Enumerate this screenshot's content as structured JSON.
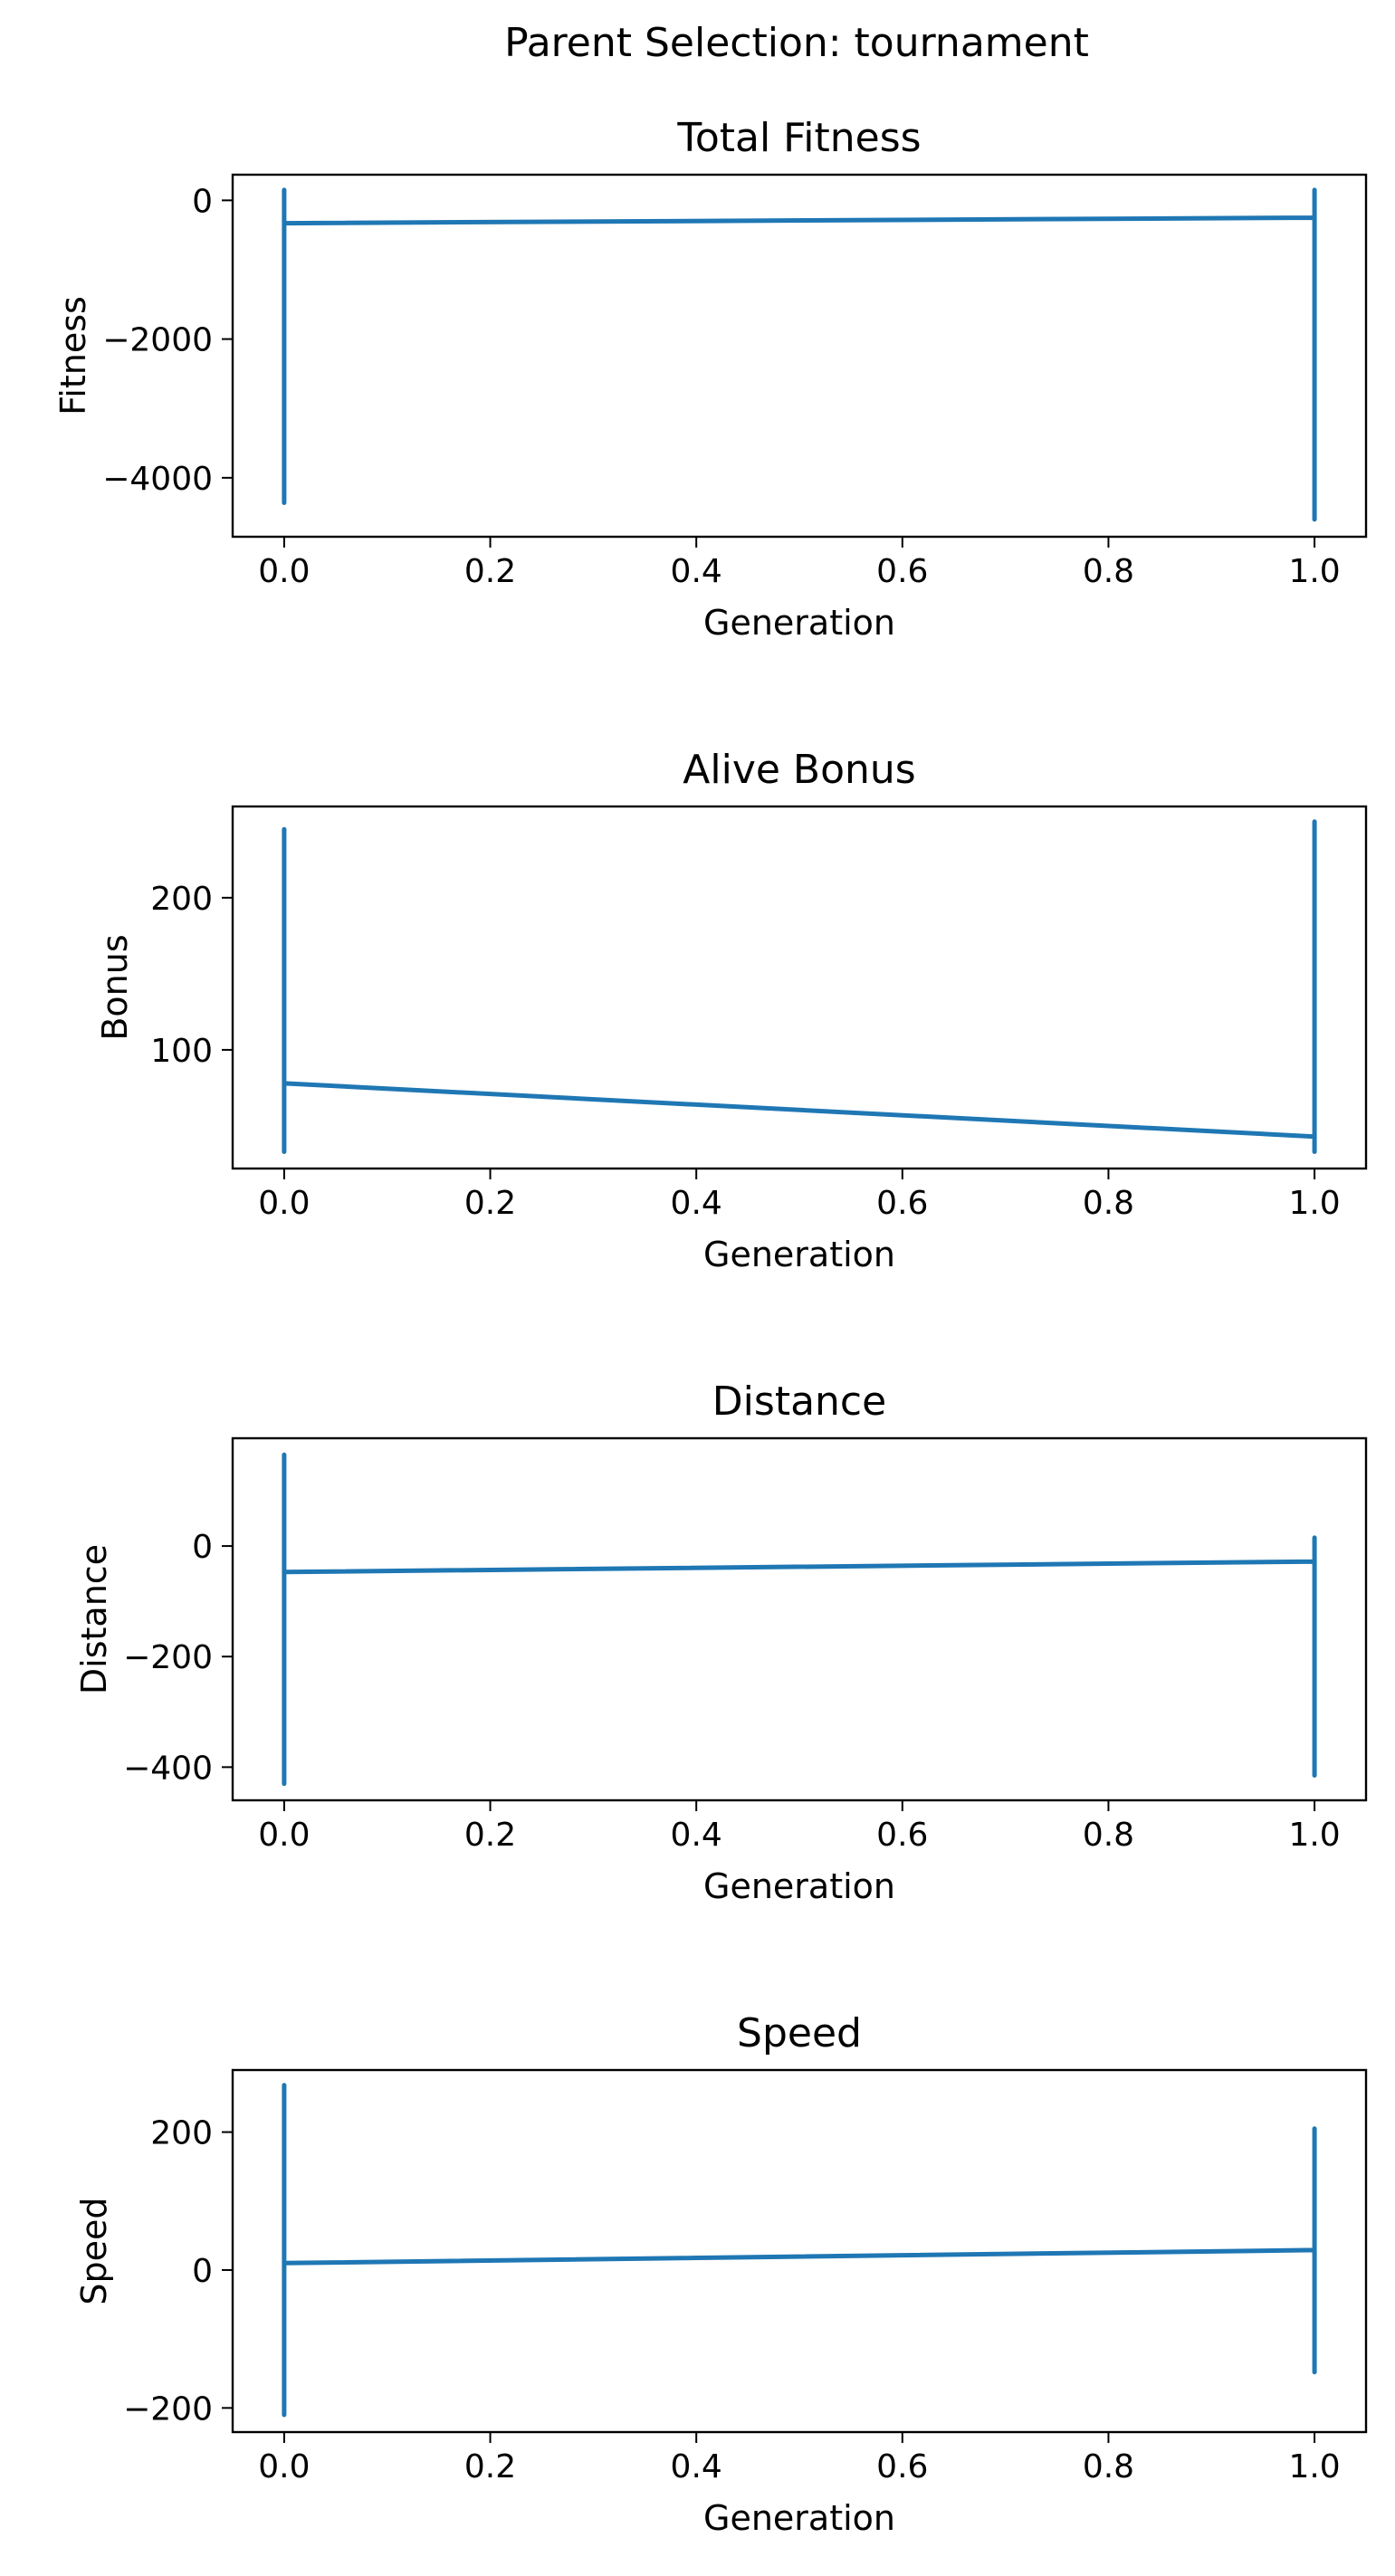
{
  "figure": {
    "suptitle": "Parent Selection: tournament",
    "line_color": "#1f77b4"
  },
  "chart_data": [
    {
      "type": "line",
      "title": "Total Fitness",
      "xlabel": "Generation",
      "ylabel": "Fitness",
      "xlim": [
        -0.05,
        1.05
      ],
      "ylim": [
        -4850,
        370
      ],
      "xticks": [
        0.0,
        0.2,
        0.4,
        0.6,
        0.8,
        1.0
      ],
      "xtick_labels": [
        "0.0",
        "0.2",
        "0.4",
        "0.6",
        "0.8",
        "1.0"
      ],
      "yticks": [
        0,
        -2000,
        -4000
      ],
      "ytick_labels": [
        "0",
        "−2000",
        "−4000"
      ],
      "grid": false,
      "series": [
        {
          "x": [
            0,
            0,
            0,
            0,
            1,
            1,
            1,
            1
          ],
          "y": [
            -4360,
            150,
            -330,
            -330,
            -250,
            -4600,
            150,
            -250
          ]
        }
      ]
    },
    {
      "type": "line",
      "title": "Alive Bonus",
      "xlabel": "Generation",
      "ylabel": "Bonus",
      "xlim": [
        -0.05,
        1.05
      ],
      "ylim": [
        22,
        260
      ],
      "xticks": [
        0.0,
        0.2,
        0.4,
        0.6,
        0.8,
        1.0
      ],
      "xtick_labels": [
        "0.0",
        "0.2",
        "0.4",
        "0.6",
        "0.8",
        "1.0"
      ],
      "yticks": [
        200,
        100
      ],
      "ytick_labels": [
        "200",
        "100"
      ],
      "grid": false,
      "series": [
        {
          "x": [
            0,
            0,
            0,
            0,
            1,
            1,
            1,
            1
          ],
          "y": [
            33,
            245,
            78,
            78,
            43,
            33,
            250,
            43
          ]
        }
      ]
    },
    {
      "type": "line",
      "title": "Distance",
      "xlabel": "Generation",
      "ylabel": "Distance",
      "xlim": [
        -0.05,
        1.05
      ],
      "ylim": [
        -460,
        195
      ],
      "xticks": [
        0.0,
        0.2,
        0.4,
        0.6,
        0.8,
        1.0
      ],
      "xtick_labels": [
        "0.0",
        "0.2",
        "0.4",
        "0.6",
        "0.8",
        "1.0"
      ],
      "yticks": [
        0,
        -200,
        -400
      ],
      "ytick_labels": [
        "0",
        "−200",
        "−400"
      ],
      "grid": false,
      "series": [
        {
          "x": [
            0,
            0,
            0,
            0,
            1,
            1,
            1,
            1
          ],
          "y": [
            -430,
            165,
            -47,
            -47,
            -28,
            -415,
            15,
            -28
          ]
        }
      ]
    },
    {
      "type": "line",
      "title": "Speed",
      "xlabel": "Generation",
      "ylabel": "Speed",
      "xlim": [
        -0.05,
        1.05
      ],
      "ylim": [
        -235,
        290
      ],
      "xticks": [
        0.0,
        0.2,
        0.4,
        0.6,
        0.8,
        1.0
      ],
      "xtick_labels": [
        "0.0",
        "0.2",
        "0.4",
        "0.6",
        "0.8",
        "1.0"
      ],
      "yticks": [
        200,
        0,
        -200
      ],
      "ytick_labels": [
        "200",
        "0",
        "−200"
      ],
      "grid": false,
      "series": [
        {
          "x": [
            0,
            0,
            0,
            0,
            1,
            1,
            1,
            1
          ],
          "y": [
            -210,
            268,
            10,
            10,
            29,
            -148,
            205,
            29
          ]
        }
      ]
    }
  ]
}
